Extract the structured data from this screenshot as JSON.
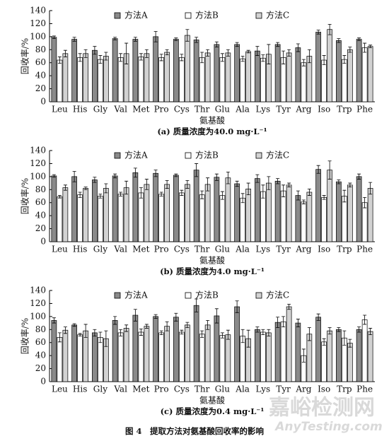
{
  "chart_data": [
    {
      "type": "bar",
      "caption": "(a) 质量浓度为40.0 mg·L⁻¹",
      "y_label": "回收率/%",
      "x_label": "氨基酸",
      "categories": [
        "Leu",
        "His",
        "Gly",
        "Val",
        "Met",
        "Pro",
        "Cys",
        "Thr",
        "Glu",
        "Ala",
        "Lys",
        "Tyr",
        "Arg",
        "Iso",
        "Trp",
        "Phe"
      ],
      "ylim": [
        0,
        140
      ],
      "yticks": [
        0,
        20,
        40,
        60,
        80,
        100,
        120,
        140
      ],
      "series": [
        {
          "name": "方法A",
          "color": "#8a8a8a",
          "values": [
            99,
            96,
            79,
            97,
            96,
            100,
            96,
            95,
            88,
            88,
            78,
            88,
            83,
            107,
            94,
            96
          ],
          "errors": [
            2,
            3,
            6,
            2,
            3,
            8,
            2,
            4,
            4,
            3,
            7,
            3,
            6,
            3,
            3,
            2
          ]
        },
        {
          "name": "方法B",
          "color": "#ffffff",
          "values": [
            64,
            68,
            65,
            68,
            69,
            68,
            68,
            68,
            68,
            66,
            67,
            68,
            60,
            64,
            65,
            83
          ],
          "errors": [
            5,
            6,
            6,
            6,
            5,
            5,
            5,
            8,
            6,
            4,
            5,
            10,
            5,
            7,
            6,
            7
          ]
        },
        {
          "name": "方法C",
          "color": "#d2d2d2",
          "values": [
            74,
            74,
            70,
            74,
            74,
            76,
            102,
            75,
            75,
            77,
            73,
            75,
            70,
            111,
            80,
            85
          ],
          "errors": [
            5,
            6,
            6,
            16,
            6,
            4,
            9,
            5,
            5,
            2,
            15,
            5,
            10,
            8,
            4,
            2
          ]
        }
      ]
    },
    {
      "type": "bar",
      "caption": "(b) 质量浓度为4.0 mg·L⁻¹",
      "y_label": "回收率/%",
      "x_label": "氨基酸",
      "categories": [
        "Leu",
        "His",
        "Gly",
        "Val",
        "Met",
        "Pro",
        "Cys",
        "Thr",
        "Glu",
        "Ala",
        "Lys",
        "Tyr",
        "Arg",
        "Iso",
        "Trp",
        "Phe"
      ],
      "ylim": [
        0,
        140
      ],
      "yticks": [
        0,
        20,
        40,
        60,
        80,
        100,
        120,
        140
      ],
      "series": [
        {
          "name": "方法A",
          "color": "#8a8a8a",
          "values": [
            101,
            100,
            95,
            101,
            106,
            105,
            102,
            110,
            99,
            89,
            97,
            93,
            71,
            111,
            92,
            100
          ],
          "errors": [
            2,
            8,
            4,
            3,
            7,
            5,
            2,
            10,
            5,
            4,
            6,
            4,
            7,
            6,
            3,
            4
          ]
        },
        {
          "name": "方法B",
          "color": "#ffffff",
          "values": [
            69,
            72,
            70,
            73,
            75,
            73,
            75,
            72,
            71,
            67,
            77,
            78,
            61,
            68,
            70,
            60
          ],
          "errors": [
            2,
            4,
            3,
            3,
            8,
            3,
            4,
            6,
            6,
            7,
            10,
            9,
            3,
            3,
            9,
            8
          ]
        },
        {
          "name": "方法C",
          "color": "#d2d2d2",
          "values": [
            83,
            82,
            82,
            83,
            88,
            88,
            88,
            88,
            98,
            81,
            90,
            87,
            76,
            110,
            87,
            82
          ],
          "errors": [
            4,
            2,
            7,
            10,
            8,
            6,
            6,
            10,
            9,
            9,
            10,
            3,
            5,
            14,
            3,
            9
          ]
        }
      ]
    },
    {
      "type": "bar",
      "caption": "(c) 质量浓度为0.4 mg·L⁻¹",
      "y_label": "回收率/%",
      "x_label": "氨基酸",
      "categories": [
        "Leu",
        "His",
        "Gly",
        "Val",
        "Met",
        "Pro",
        "Cys",
        "Thr",
        "Glu",
        "Ala",
        "Lys",
        "Tyr",
        "Arg",
        "Iso",
        "Trp",
        "Phe"
      ],
      "ylim": [
        0,
        140
      ],
      "yticks": [
        0,
        20,
        40,
        60,
        80,
        100,
        120,
        140
      ],
      "series": [
        {
          "name": "方法A",
          "color": "#8a8a8a",
          "values": [
            94,
            87,
            75,
            94,
            102,
            100,
            99,
            117,
            101,
            115,
            80,
            91,
            90,
            99,
            80,
            80
          ],
          "errors": [
            4,
            2,
            5,
            6,
            9,
            3,
            6,
            10,
            11,
            9,
            4,
            8,
            6,
            5,
            3,
            4
          ]
        },
        {
          "name": "方法B",
          "color": "#ffffff",
          "values": [
            68,
            72,
            68,
            75,
            76,
            75,
            76,
            73,
            71,
            70,
            76,
            92,
            40,
            61,
            67,
            95
          ],
          "errors": [
            7,
            2,
            8,
            5,
            5,
            3,
            3,
            5,
            4,
            10,
            4,
            8,
            10,
            5,
            11,
            7
          ]
        },
        {
          "name": "方法C",
          "color": "#d2d2d2",
          "values": [
            79,
            78,
            66,
            82,
            85,
            85,
            87,
            87,
            72,
            66,
            75,
            115,
            73,
            78,
            59,
            77
          ],
          "errors": [
            5,
            10,
            12,
            5,
            3,
            7,
            4,
            7,
            7,
            13,
            5,
            4,
            10,
            5,
            6,
            5
          ]
        }
      ]
    }
  ],
  "figure_caption": "图 4　提取方法对氨基酸回收率的影响",
  "watermark": {
    "cn": "嘉峪检测网",
    "en": "AnyTesting.com"
  }
}
